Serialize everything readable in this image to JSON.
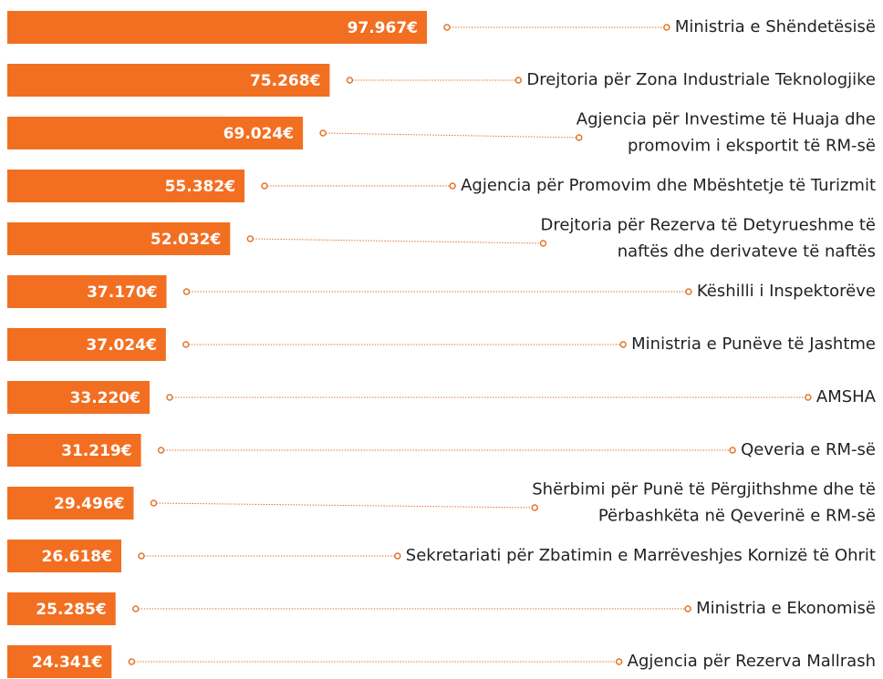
{
  "chart_data": {
    "type": "bar",
    "orientation": "horizontal",
    "color": "#f26f21",
    "categories": [
      "Ministria e Shëndetësisë",
      "Drejtoria për Zona Industriale Teknologjike",
      "Agjencia për Investime të Huaja dhe\npromovim i eksportit të RM-së",
      "Agjencia për Promovim dhe Mbështetje të Turizmit",
      "Drejtoria për Rezerva të Detyrueshme të\nnaftës dhe derivateve të naftës",
      "Këshilli i Inspektorëve",
      "Ministria e Punëve të Jashtme",
      "AMSHA",
      "Qeveria e RM-së",
      "Shërbimi për Punë të Përgjithshme dhe të\nPërbashkëta në Qeverinë e RM-së",
      "Sekretariati për Zbatimin e Marrëveshjes Kornizë të Ohrit",
      "Ministria e Ekonomisë",
      "Agjencia për Rezerva Mallrash"
    ],
    "values": [
      97967,
      75268,
      69024,
      55382,
      52032,
      37170,
      37024,
      33220,
      31219,
      29496,
      26618,
      25285,
      24341
    ],
    "value_labels": [
      "97.967€",
      "75.268€",
      "69.024€",
      "55.382€",
      "52.032€",
      "37.170€",
      "37.024€",
      "33.220€",
      "31.219€",
      "29.496€",
      "26.618€",
      "25.285€",
      "24.341€"
    ]
  }
}
